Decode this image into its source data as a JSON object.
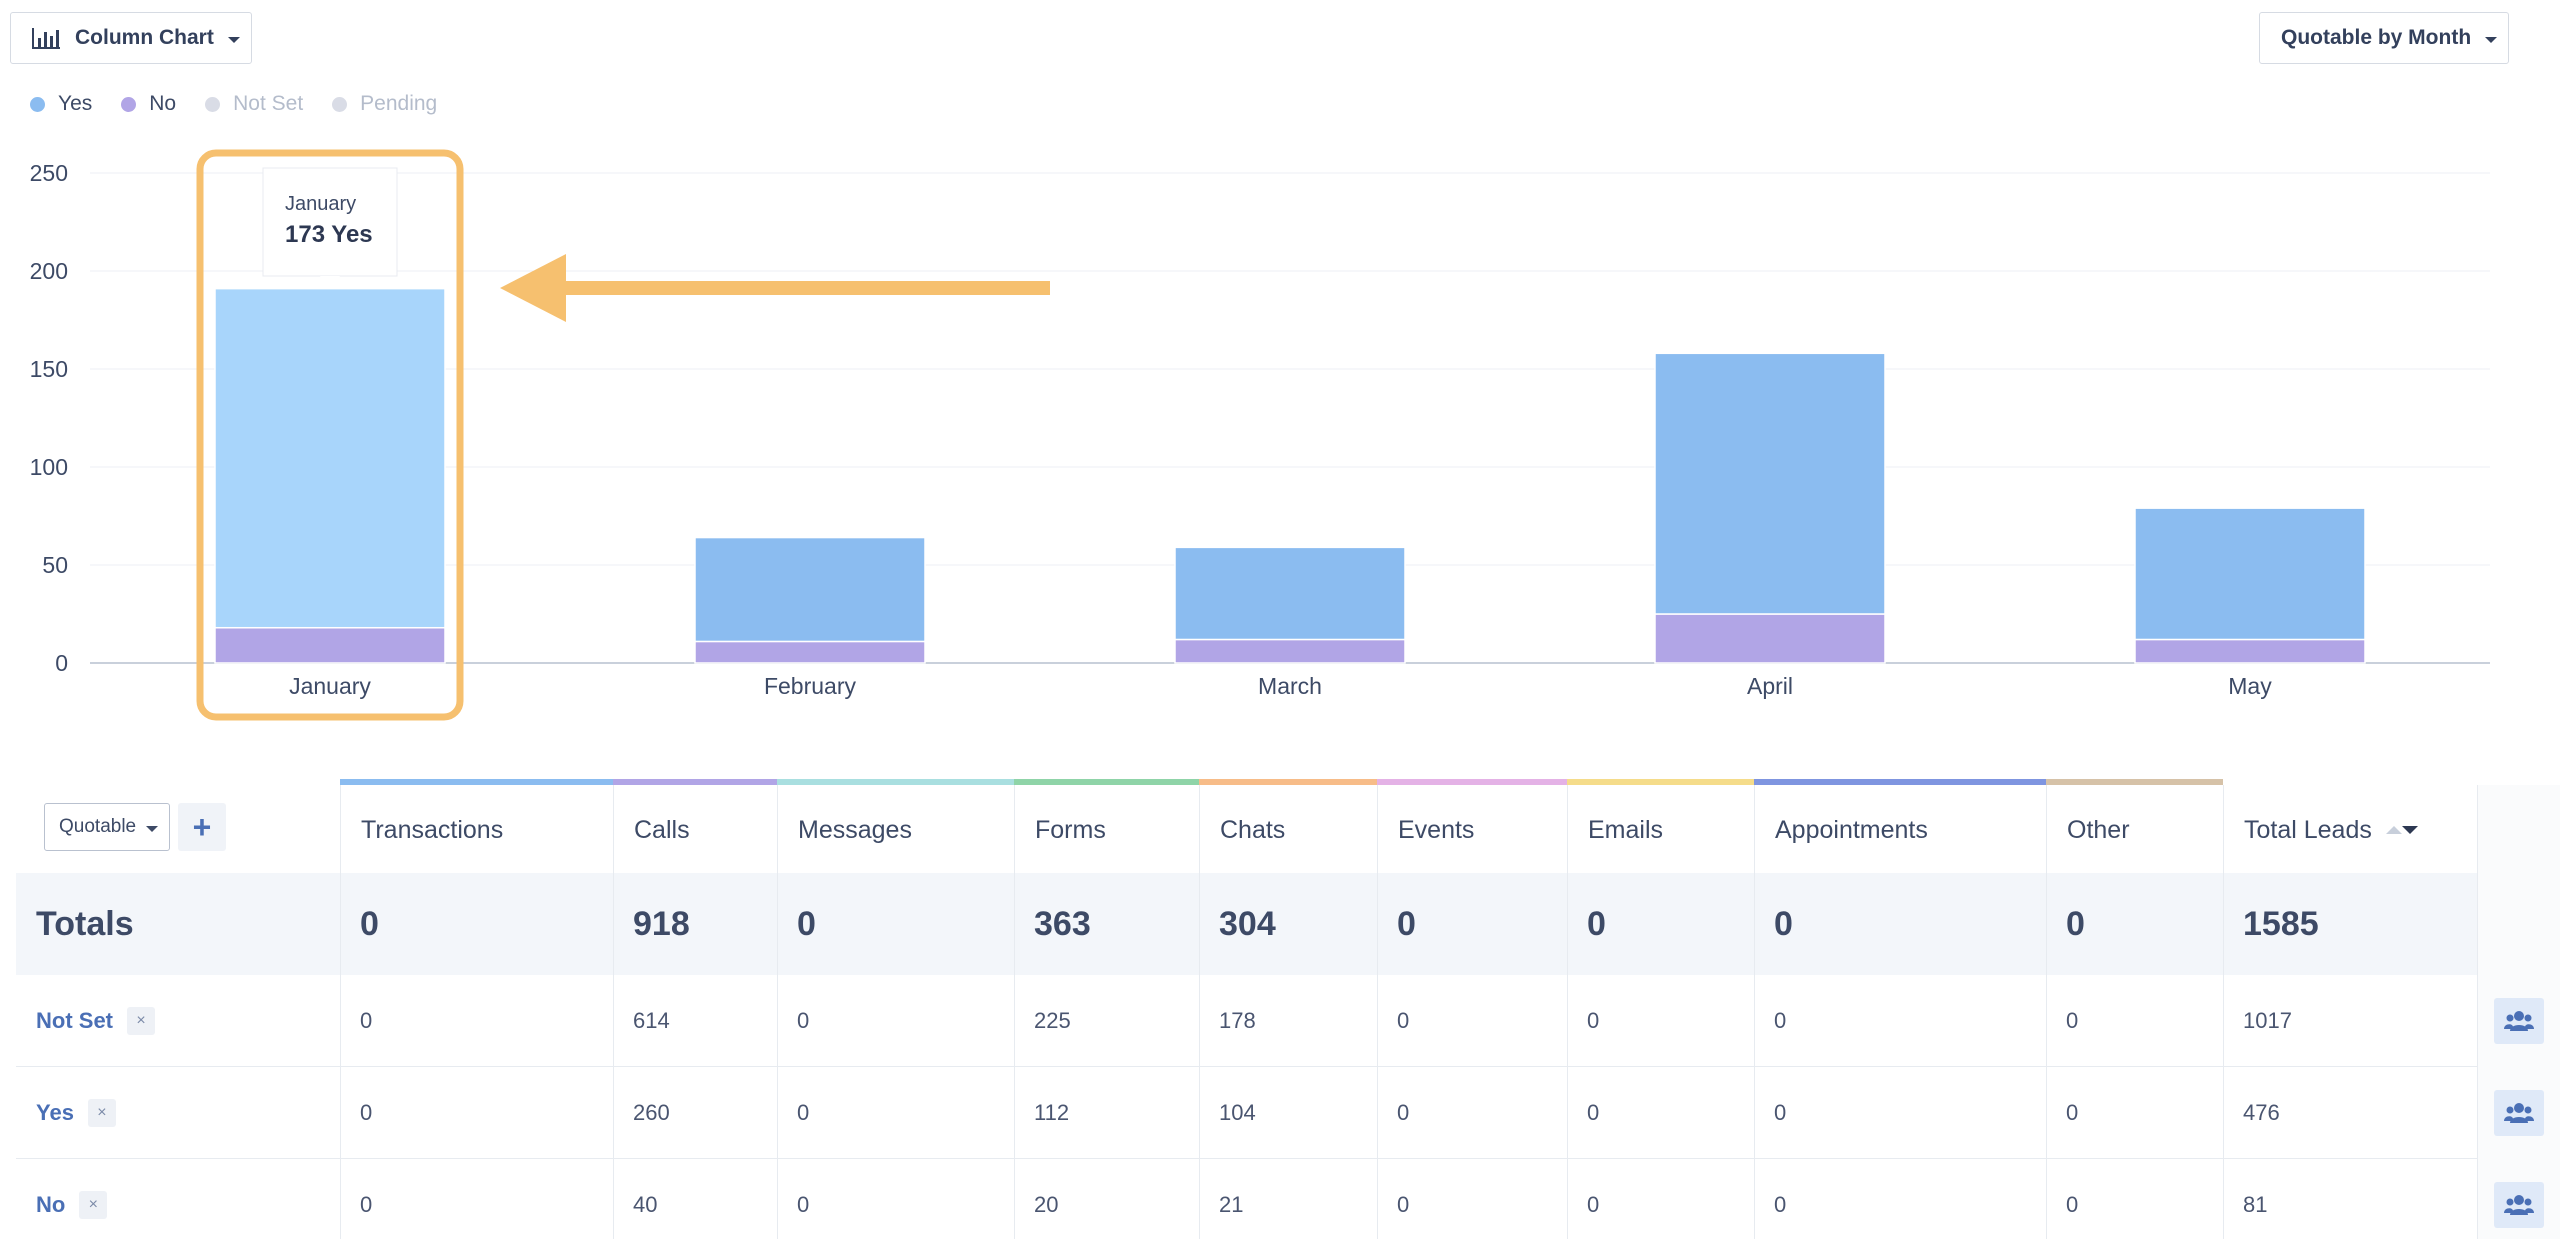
{
  "toolbar": {
    "chart_type_label": "Column Chart",
    "report_type_label": "Quotable by Month"
  },
  "legend": [
    {
      "label": "Yes",
      "color": "#8bbcf0",
      "active": true
    },
    {
      "label": "No",
      "color": "#b1a5e6",
      "active": true
    },
    {
      "label": "Not Set",
      "color": "#d9dce6",
      "active": false
    },
    {
      "label": "Pending",
      "color": "#d9dce6",
      "active": false
    }
  ],
  "chart_data": {
    "type": "bar",
    "stacked": true,
    "categories": [
      "January",
      "February",
      "March",
      "April",
      "May"
    ],
    "series": [
      {
        "name": "No",
        "values": [
          18,
          11,
          12,
          25,
          12
        ],
        "color": "#b1a5e6"
      },
      {
        "name": "Yes",
        "values": [
          173,
          53,
          47,
          133,
          67
        ],
        "color": "#8bbcf0"
      }
    ],
    "y_ticks": [
      0,
      50,
      100,
      150,
      200,
      250
    ],
    "ylim": [
      0,
      250
    ],
    "highlighted_category": "January",
    "highlight_color": "#a8d5fb",
    "tooltip": {
      "title": "January",
      "value": "173 Yes"
    }
  },
  "table": {
    "filter_select": "Quotable",
    "add_label": "+",
    "columns": [
      {
        "label": "Transactions",
        "color": "#8bbcf0"
      },
      {
        "label": "Calls",
        "color": "#b1a5e6"
      },
      {
        "label": "Messages",
        "color": "#a9dfe0"
      },
      {
        "label": "Forms",
        "color": "#8fd4a8"
      },
      {
        "label": "Chats",
        "color": "#f7bc88"
      },
      {
        "label": "Events",
        "color": "#e4b2e6"
      },
      {
        "label": "Emails",
        "color": "#f5dc8a"
      },
      {
        "label": "Appointments",
        "color": "#7f95e0"
      },
      {
        "label": "Other",
        "color": "#d6c2a8"
      },
      {
        "label": "Total Leads",
        "color": ""
      }
    ],
    "totals": {
      "label": "Totals",
      "values": [
        "0",
        "918",
        "0",
        "363",
        "304",
        "0",
        "0",
        "0",
        "0",
        "1585"
      ]
    },
    "rows": [
      {
        "label": "Not Set",
        "values": [
          "0",
          "614",
          "0",
          "225",
          "178",
          "0",
          "0",
          "0",
          "0",
          "1017"
        ]
      },
      {
        "label": "Yes",
        "values": [
          "0",
          "260",
          "0",
          "112",
          "104",
          "0",
          "0",
          "0",
          "0",
          "476"
        ]
      },
      {
        "label": "No",
        "values": [
          "0",
          "40",
          "0",
          "20",
          "21",
          "0",
          "0",
          "0",
          "0",
          "81"
        ]
      }
    ],
    "remove_label": "×"
  }
}
